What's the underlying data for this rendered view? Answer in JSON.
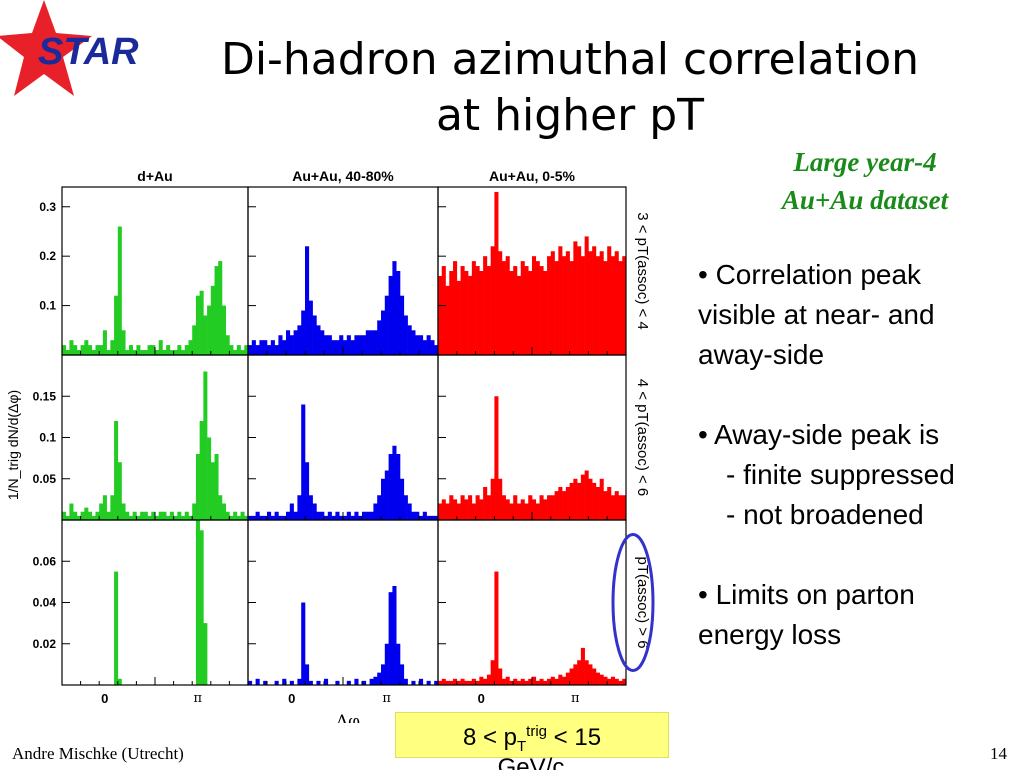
{
  "logo": {
    "text": "STAR",
    "icon": "red-star-icon"
  },
  "title": {
    "line1": "Di-hadron azimuthal correlation",
    "line2": "at higher pT"
  },
  "dataset": {
    "line1": "Large year-4",
    "line2": "Au+Au dataset"
  },
  "bullets": {
    "b1": [
      "• Correlation peak",
      "visible at near- and",
      "away-side"
    ],
    "b2": [
      "• Away-side peak is",
      "- finite suppressed",
      "- not broadened"
    ],
    "b3": [
      "• Limits on parton",
      "energy loss"
    ]
  },
  "trigger": {
    "prefix": "8 < p",
    "sub": "T",
    "sup": "trig",
    "suffix": " < 15",
    "unit": "GeV/c"
  },
  "footer": {
    "author": "Andre Mischke (Utrecht)",
    "page": "14"
  },
  "colors": {
    "dAu": "#22cc22",
    "AuAu_40_80": "#0000ee",
    "AuAu_0_5": "#ff0000",
    "dataset_text": "#1a8a1a",
    "highlight_ellipse": "#3333cc",
    "trigger_box": "#ffff80"
  },
  "chart_data": {
    "type": "bar",
    "xlabel": "Δφ",
    "ylabel": "1/N_trig dN/d(Δφ)",
    "x_tick_labels": [
      "0",
      "π"
    ],
    "columns": [
      "d+Au",
      "Au+Au, 40-80%",
      "Au+Au, 0-5%"
    ],
    "rows": [
      {
        "label": "3 < pT(assoc) < 4",
        "ylim": [
          0,
          0.34
        ],
        "y_ticks": [
          0.1,
          0.2,
          0.3
        ],
        "y_tick_labels": [
          "0.1",
          "0.2",
          "0.3"
        ],
        "series": [
          {
            "name": "d+Au",
            "values": [
              0.02,
              0.01,
              0.03,
              0.02,
              0.01,
              0.02,
              0.03,
              0.02,
              0.01,
              0.02,
              0.02,
              0.05,
              0.01,
              0.03,
              0.12,
              0.26,
              0.05,
              0.01,
              0.02,
              0.01,
              0.02,
              0.01,
              0.01,
              0.02,
              0.02,
              0.01,
              0.03,
              0.01,
              0.02,
              0.01,
              0.01,
              0.02,
              0.01,
              0.02,
              0.03,
              0.06,
              0.12,
              0.13,
              0.08,
              0.1,
              0.14,
              0.18,
              0.19,
              0.1,
              0.04,
              0.02,
              0.01,
              0.02,
              0.01,
              0.02
            ]
          },
          {
            "name": "Au+Au, 40-80%",
            "values": [
              0.02,
              0.03,
              0.02,
              0.03,
              0.03,
              0.02,
              0.03,
              0.02,
              0.04,
              0.03,
              0.05,
              0.04,
              0.05,
              0.06,
              0.09,
              0.22,
              0.11,
              0.08,
              0.06,
              0.05,
              0.04,
              0.04,
              0.03,
              0.03,
              0.04,
              0.03,
              0.04,
              0.03,
              0.04,
              0.04,
              0.04,
              0.05,
              0.05,
              0.05,
              0.07,
              0.09,
              0.12,
              0.16,
              0.19,
              0.17,
              0.12,
              0.08,
              0.06,
              0.05,
              0.04,
              0.04,
              0.03,
              0.04,
              0.03,
              0.02
            ]
          },
          {
            "name": "Au+Au, 0-5%",
            "values": [
              0.16,
              0.18,
              0.14,
              0.17,
              0.19,
              0.15,
              0.18,
              0.17,
              0.16,
              0.19,
              0.18,
              0.17,
              0.2,
              0.18,
              0.22,
              0.33,
              0.21,
              0.19,
              0.2,
              0.17,
              0.18,
              0.16,
              0.19,
              0.18,
              0.17,
              0.2,
              0.19,
              0.18,
              0.17,
              0.2,
              0.21,
              0.19,
              0.22,
              0.2,
              0.21,
              0.19,
              0.23,
              0.22,
              0.2,
              0.24,
              0.21,
              0.22,
              0.2,
              0.21,
              0.19,
              0.22,
              0.2,
              0.21,
              0.19,
              0.2
            ]
          }
        ]
      },
      {
        "label": "4 < pT(assoc) < 6",
        "ylim": [
          0,
          0.2
        ],
        "y_ticks": [
          0.05,
          0.1,
          0.15
        ],
        "y_tick_labels": [
          "0.05",
          "0.1",
          "0.15"
        ],
        "series": [
          {
            "name": "d+Au",
            "values": [
              0.01,
              0.005,
              0.02,
              0.01,
              0.005,
              0.01,
              0.015,
              0.01,
              0.005,
              0.01,
              0.02,
              0.03,
              0.01,
              0.03,
              0.12,
              0.07,
              0.02,
              0.01,
              0.005,
              0.01,
              0.005,
              0.01,
              0.01,
              0.005,
              0.01,
              0.005,
              0.01,
              0.01,
              0.005,
              0.01,
              0.005,
              0.01,
              0.005,
              0.01,
              0.005,
              0.02,
              0.08,
              0.12,
              0.18,
              0.1,
              0.07,
              0.08,
              0.03,
              0.02,
              0.01,
              0.005,
              0.01,
              0.005,
              0.01,
              0.005
            ]
          },
          {
            "name": "Au+Au, 40-80%",
            "values": [
              0.005,
              0.005,
              0.01,
              0.005,
              0.005,
              0.01,
              0.005,
              0.01,
              0.005,
              0.005,
              0.01,
              0.02,
              0.01,
              0.03,
              0.14,
              0.07,
              0.03,
              0.02,
              0.01,
              0.01,
              0.005,
              0.01,
              0.005,
              0.01,
              0.005,
              0.005,
              0.01,
              0.005,
              0.01,
              0.005,
              0.01,
              0.01,
              0.01,
              0.02,
              0.03,
              0.05,
              0.06,
              0.08,
              0.09,
              0.08,
              0.05,
              0.03,
              0.02,
              0.01,
              0.01,
              0.005,
              0.01,
              0.005,
              0.005,
              0.005
            ]
          },
          {
            "name": "Au+Au, 0-5%",
            "values": [
              0.02,
              0.025,
              0.02,
              0.03,
              0.025,
              0.02,
              0.03,
              0.025,
              0.03,
              0.02,
              0.03,
              0.025,
              0.04,
              0.03,
              0.05,
              0.15,
              0.05,
              0.03,
              0.025,
              0.02,
              0.03,
              0.02,
              0.025,
              0.02,
              0.03,
              0.025,
              0.02,
              0.03,
              0.025,
              0.03,
              0.03,
              0.035,
              0.04,
              0.035,
              0.04,
              0.045,
              0.05,
              0.045,
              0.055,
              0.06,
              0.05,
              0.045,
              0.04,
              0.05,
              0.035,
              0.04,
              0.03,
              0.035,
              0.03,
              0.03
            ]
          }
        ]
      },
      {
        "label": "pT(assoc) > 6",
        "ylim": [
          0,
          0.08
        ],
        "y_ticks": [
          0.02,
          0.04,
          0.06
        ],
        "y_tick_labels": [
          "0.02",
          "0.04",
          "0.06"
        ],
        "series": [
          {
            "name": "d+Au",
            "values": [
              0,
              0,
              0,
              0,
              0,
              0,
              0,
              0,
              0,
              0,
              0,
              0,
              0,
              0,
              0.055,
              0.003,
              0,
              0,
              0,
              0,
              0,
              0,
              0,
              0,
              0,
              0,
              0,
              0,
              0,
              0,
              0,
              0,
              0,
              0,
              0,
              0,
              0.08,
              0.075,
              0.03,
              0,
              0,
              0,
              0,
              0,
              0,
              0,
              0,
              0,
              0,
              0
            ]
          },
          {
            "name": "Au+Au, 40-80%",
            "values": [
              0.002,
              0,
              0.003,
              0,
              0.002,
              0,
              0,
              0.002,
              0,
              0.003,
              0,
              0.002,
              0,
              0.003,
              0.04,
              0.01,
              0.002,
              0,
              0.002,
              0,
              0.003,
              0,
              0,
              0.002,
              0,
              0,
              0.002,
              0,
              0.003,
              0,
              0.002,
              0,
              0.003,
              0.004,
              0.006,
              0.01,
              0.02,
              0.045,
              0.048,
              0.02,
              0.01,
              0.003,
              0,
              0.002,
              0,
              0.003,
              0,
              0.002,
              0,
              0.002
            ]
          },
          {
            "name": "Au+Au, 0-5%",
            "values": [
              0.002,
              0.003,
              0.002,
              0.002,
              0.003,
              0.002,
              0.003,
              0.002,
              0.002,
              0.003,
              0.002,
              0.004,
              0.003,
              0.005,
              0.012,
              0.055,
              0.008,
              0.003,
              0.004,
              0.002,
              0.003,
              0.002,
              0.003,
              0.002,
              0.003,
              0.004,
              0.002,
              0.003,
              0.002,
              0.003,
              0.004,
              0.003,
              0.005,
              0.004,
              0.006,
              0.008,
              0.01,
              0.012,
              0.018,
              0.012,
              0.01,
              0.008,
              0.006,
              0.005,
              0.004,
              0.003,
              0.004,
              0.003,
              0.002,
              0.003
            ]
          }
        ]
      }
    ]
  }
}
